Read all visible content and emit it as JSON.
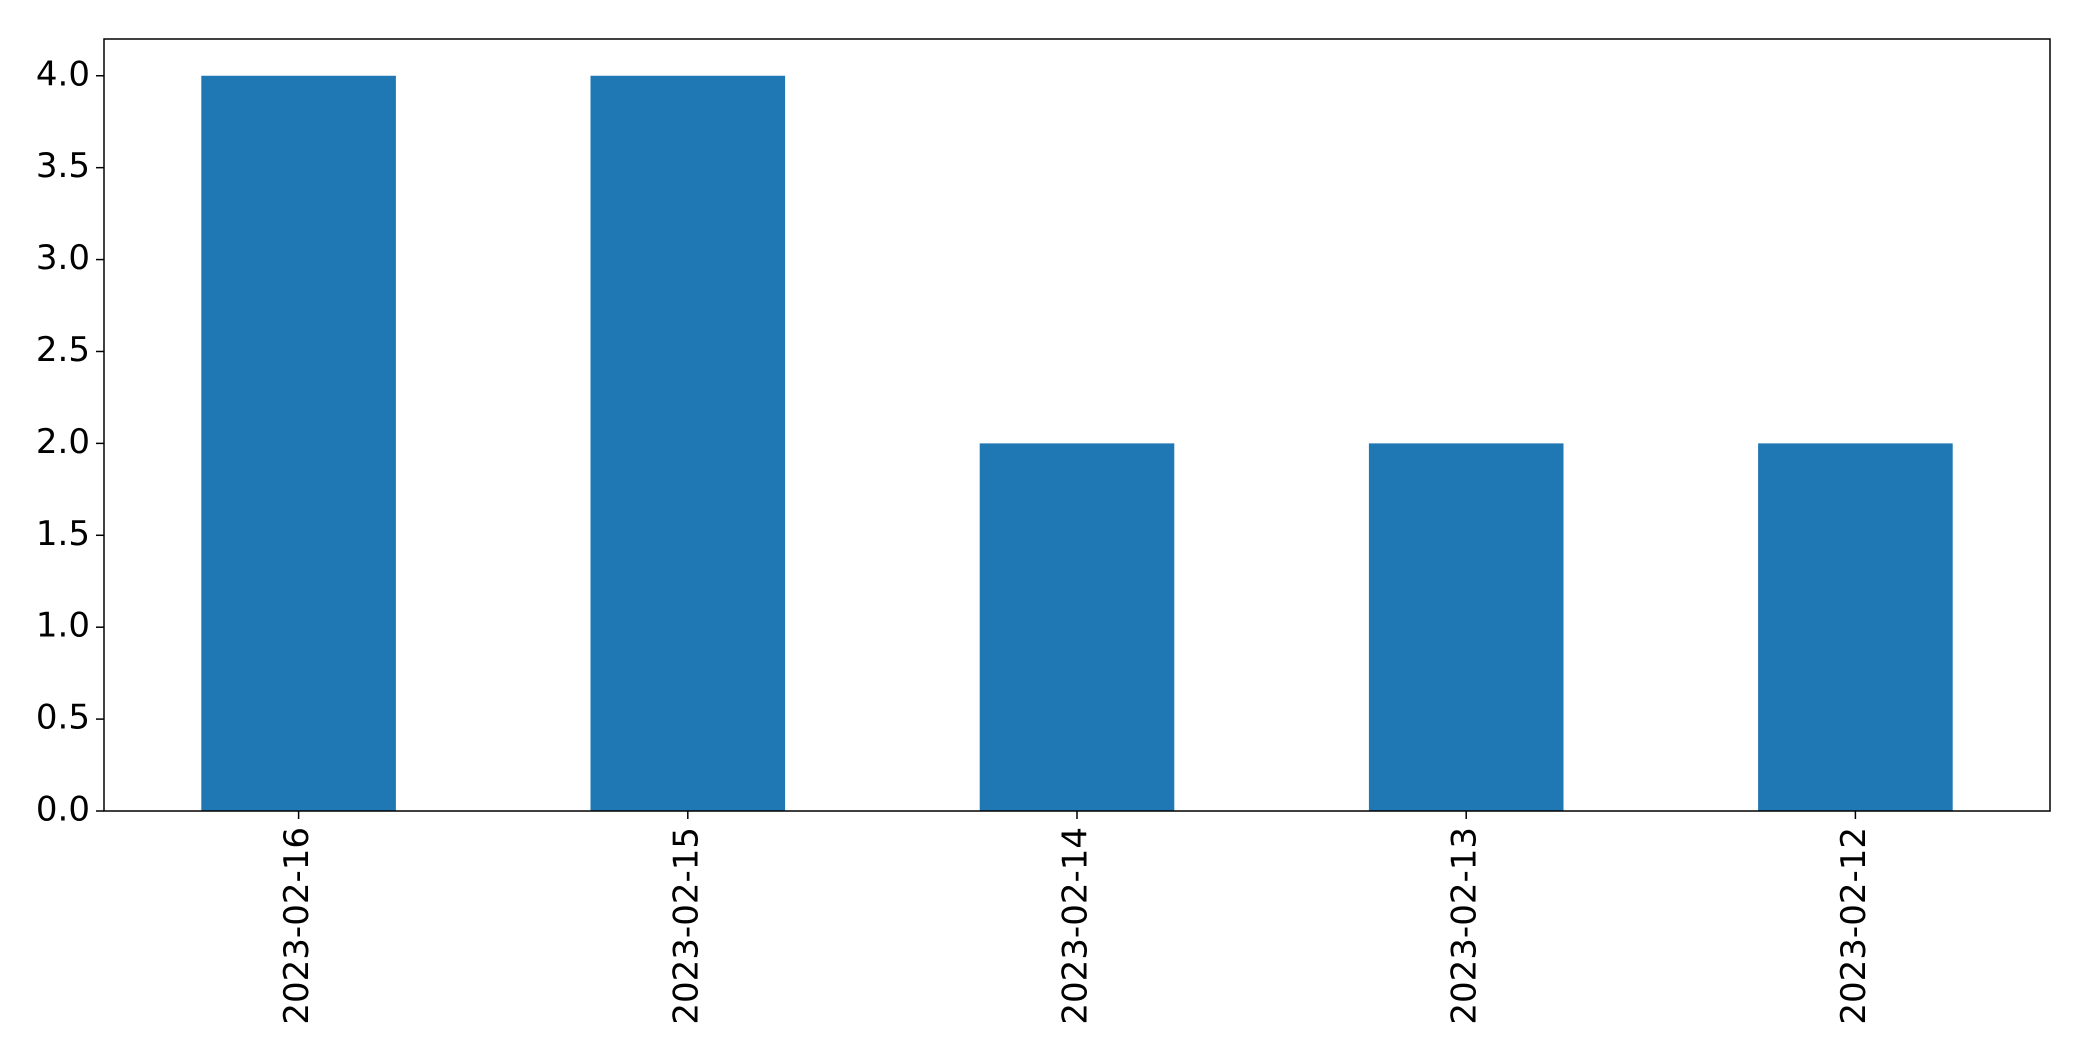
{
  "chart_data": {
    "type": "bar",
    "categories": [
      "2023-02-16",
      "2023-02-15",
      "2023-02-14",
      "2023-02-13",
      "2023-02-12"
    ],
    "values": [
      4,
      4,
      2,
      2,
      2
    ],
    "title": "",
    "xlabel": "",
    "ylabel": "",
    "ylim": [
      0,
      4.2
    ],
    "yticks": [
      "0.0",
      "0.5",
      "1.0",
      "1.5",
      "2.0",
      "2.5",
      "3.0",
      "3.5",
      "4.0"
    ],
    "grid": false,
    "legend": "none",
    "bar_color": "#1f77b4"
  }
}
